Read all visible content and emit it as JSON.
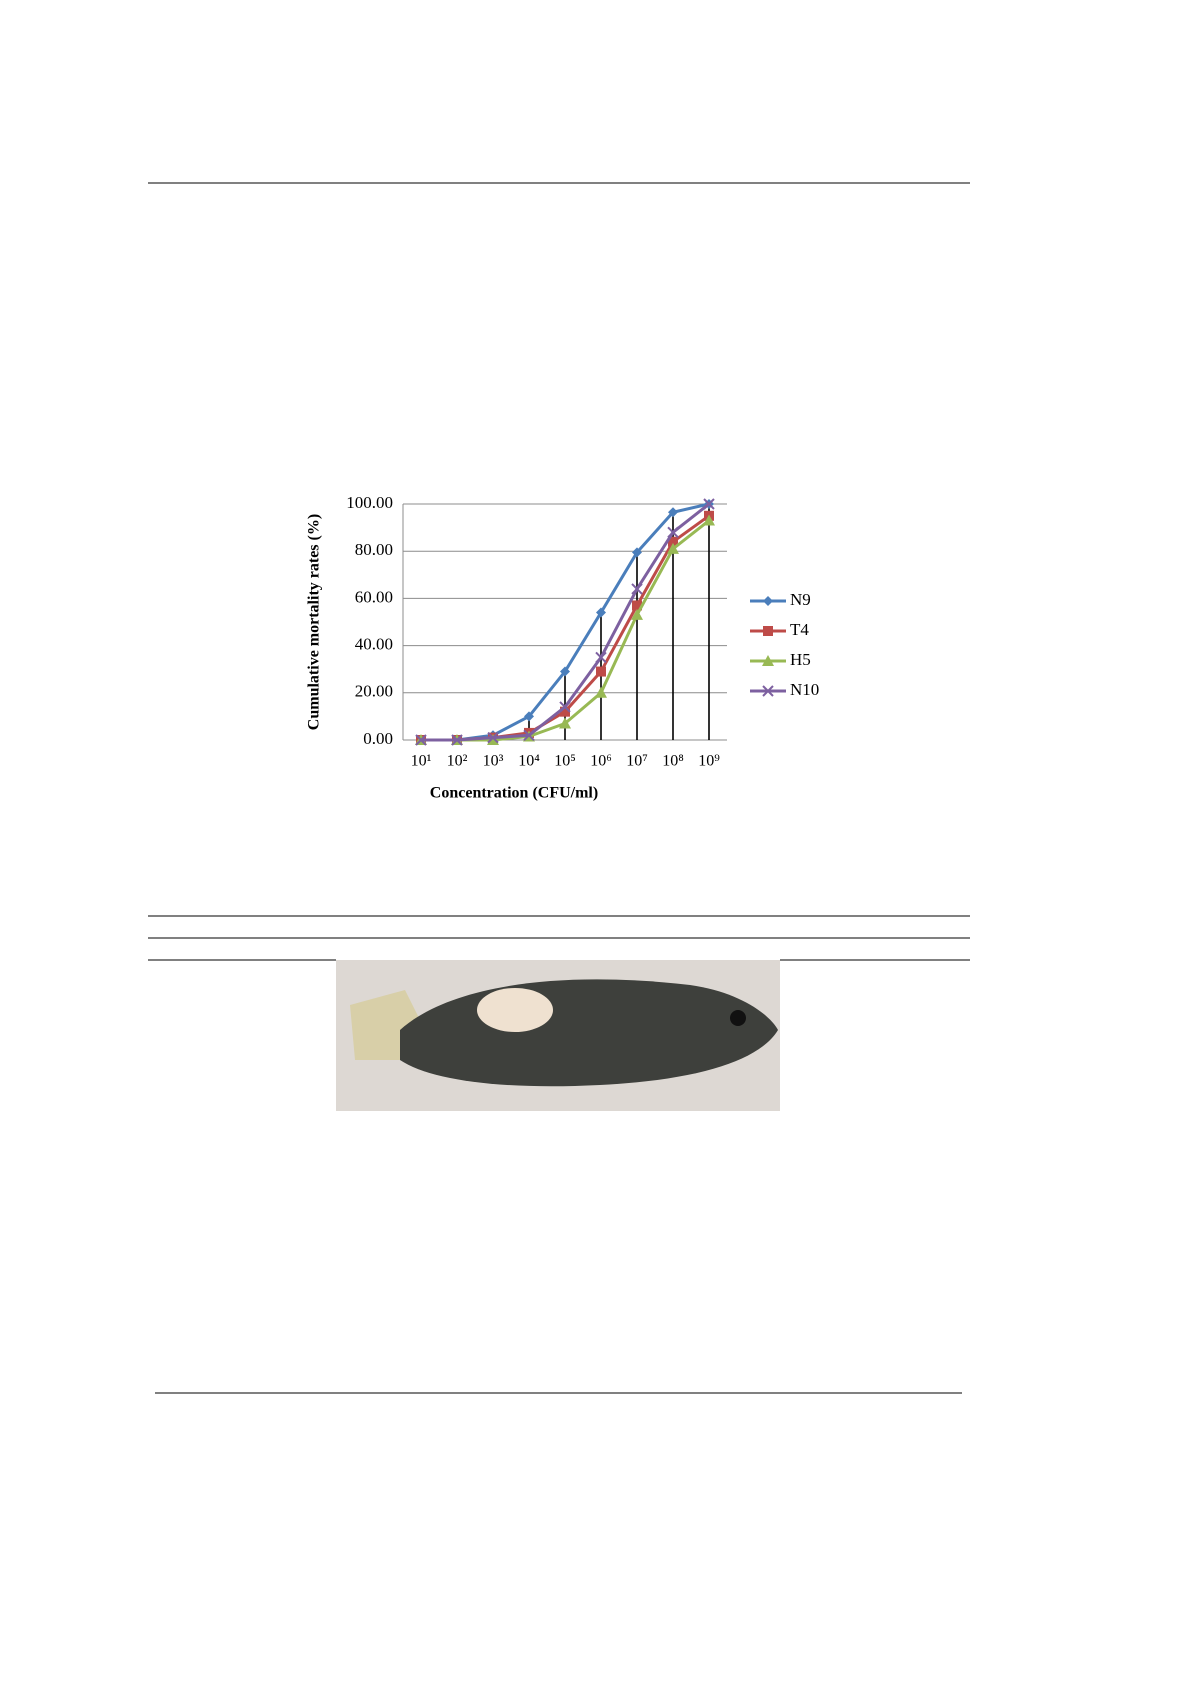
{
  "chart_data": {
    "type": "line",
    "y_label": "Cumulative mortality rates (%)",
    "x_label": "Concentration (CFU/ml)",
    "categories": [
      "10¹",
      "10²",
      "10³",
      "10⁴",
      "10⁵",
      "10⁶",
      "10⁷",
      "10⁸",
      "10⁹"
    ],
    "series": [
      {
        "name": "N9",
        "color": "#4a7ebb",
        "marker": "diamond",
        "values": [
          0,
          0,
          2,
          10,
          29,
          54,
          79.5,
          96.5,
          100
        ]
      },
      {
        "name": "T4",
        "color": "#be4b48",
        "marker": "square",
        "values": [
          0,
          0,
          1,
          3,
          12,
          29,
          57,
          84,
          95
        ]
      },
      {
        "name": "H5",
        "color": "#98b954",
        "marker": "triangle",
        "values": [
          0,
          0,
          0,
          1.5,
          7,
          20,
          53,
          81,
          93
        ]
      },
      {
        "name": "N10",
        "color": "#7d60a0",
        "marker": "x",
        "values": [
          0,
          0,
          1,
          2,
          14,
          35,
          64,
          88,
          100
        ]
      }
    ],
    "ylim": [
      0,
      100
    ],
    "yticks": [
      {
        "value": 0,
        "label": "0.00"
      },
      {
        "value": 20,
        "label": "20.00"
      },
      {
        "value": 40,
        "label": "40.00"
      },
      {
        "value": 60,
        "label": "60.00"
      },
      {
        "value": 80,
        "label": "80.00"
      },
      {
        "value": 100,
        "label": "100.00"
      }
    ],
    "grid": true,
    "legend": "right",
    "drop_lines": true
  }
}
